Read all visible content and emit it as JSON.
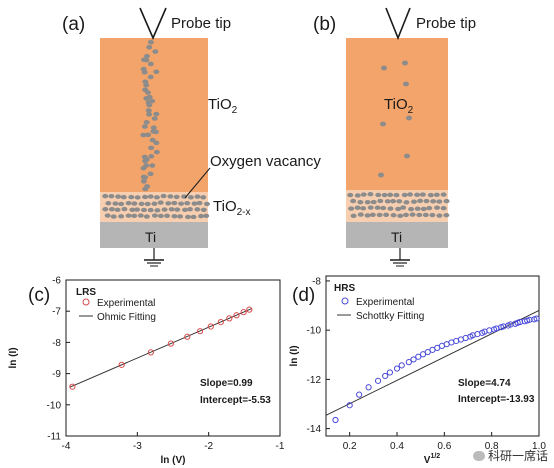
{
  "schematic": {
    "a": {
      "panel_label": "(a)",
      "probe_label": "Probe tip",
      "tio2_label": "TiO",
      "tio2_sub": "2",
      "vacancy_label": "Oxygen vacancy",
      "tio2x_label": "TiO",
      "tio2x_sub": "2-x",
      "ti_label": "Ti"
    },
    "b": {
      "panel_label": "(b)",
      "probe_label": "Probe tip",
      "tio2_label": "TiO",
      "tio2_sub": "2",
      "ti_label": "Ti"
    },
    "colors": {
      "tio2": "#f2a46a",
      "tio2x": "#f7cfb0",
      "ti": "#b5b5b5",
      "vacancy": "#8c8c8c"
    }
  },
  "chart_data": [
    {
      "panel_label": "(c)",
      "type": "scatter",
      "state_label": "LRS",
      "xlabel": "ln (V)",
      "ylabel": "ln (I)",
      "xlim": [
        -4,
        -1
      ],
      "ylim": [
        -11,
        -6
      ],
      "xticks": [
        "-4",
        "-3",
        "-2",
        "-1"
      ],
      "yticks": [
        "-6",
        "-7",
        "-8",
        "-9",
        "-10",
        "-11"
      ],
      "series": [
        {
          "name": "Experimental",
          "marker": "circle",
          "color": "#d94a4a",
          "x": [
            -3.91,
            -3.22,
            -2.81,
            -2.53,
            -2.3,
            -2.12,
            -1.97,
            -1.83,
            -1.71,
            -1.61,
            -1.51,
            -1.43
          ],
          "y": [
            -9.42,
            -8.72,
            -8.32,
            -8.04,
            -7.82,
            -7.64,
            -7.49,
            -7.35,
            -7.23,
            -7.13,
            -7.03,
            -6.95
          ]
        },
        {
          "name": "Ohmic Fitting",
          "style": "line",
          "color": "#333333",
          "x": [
            -3.95,
            -1.4
          ],
          "y": [
            -9.44,
            -6.92
          ]
        }
      ],
      "annotations": [
        "Slope=0.99",
        "Intercept=-5.53"
      ],
      "legend_position": "top-left"
    },
    {
      "panel_label": "(d)",
      "type": "scatter",
      "state_label": "HRS",
      "xlabel": "V",
      "xlabel_sup": "1/2",
      "ylabel": "ln (I)",
      "xlim": [
        0.1,
        1.0
      ],
      "ylim": [
        -14.3,
        -7.8
      ],
      "xticks": [
        "0.2",
        "0.4",
        "0.6",
        "0.8",
        "1.0"
      ],
      "yticks": [
        "-8",
        "-10",
        "-12",
        "-14"
      ],
      "series": [
        {
          "name": "Experimental",
          "marker": "circle",
          "color": "#4a4ad9",
          "x": [
            0.14,
            0.2,
            0.24,
            0.28,
            0.32,
            0.35,
            0.37,
            0.4,
            0.42,
            0.45,
            0.47,
            0.49,
            0.51,
            0.53,
            0.55,
            0.57,
            0.59,
            0.61,
            0.63,
            0.65,
            0.67,
            0.69,
            0.71,
            0.72,
            0.74,
            0.76,
            0.77,
            0.79,
            0.81,
            0.82,
            0.84,
            0.85,
            0.87,
            0.88,
            0.9,
            0.91,
            0.92,
            0.94,
            0.95,
            0.96,
            0.98,
            0.99
          ],
          "y": [
            -13.65,
            -13.05,
            -12.62,
            -12.32,
            -12.06,
            -11.86,
            -11.72,
            -11.56,
            -11.43,
            -11.3,
            -11.19,
            -11.08,
            -10.98,
            -10.89,
            -10.8,
            -10.72,
            -10.64,
            -10.57,
            -10.5,
            -10.44,
            -10.38,
            -10.32,
            -10.26,
            -10.21,
            -10.16,
            -10.11,
            -10.06,
            -10.01,
            -9.97,
            -9.93,
            -9.88,
            -9.85,
            -9.81,
            -9.77,
            -9.74,
            -9.7,
            -9.67,
            -9.64,
            -9.61,
            -9.58,
            -9.56,
            -9.53
          ]
        },
        {
          "name": "Schottky Fitting",
          "style": "line",
          "color": "#333333",
          "x": [
            0.1,
            1.0
          ],
          "y": [
            -13.46,
            -9.2
          ]
        }
      ],
      "annotations": [
        "Slope=4.74",
        "Intercept=-13.93"
      ],
      "legend_position": "top-left"
    }
  ],
  "watermark": {
    "text": "科研一席话"
  }
}
